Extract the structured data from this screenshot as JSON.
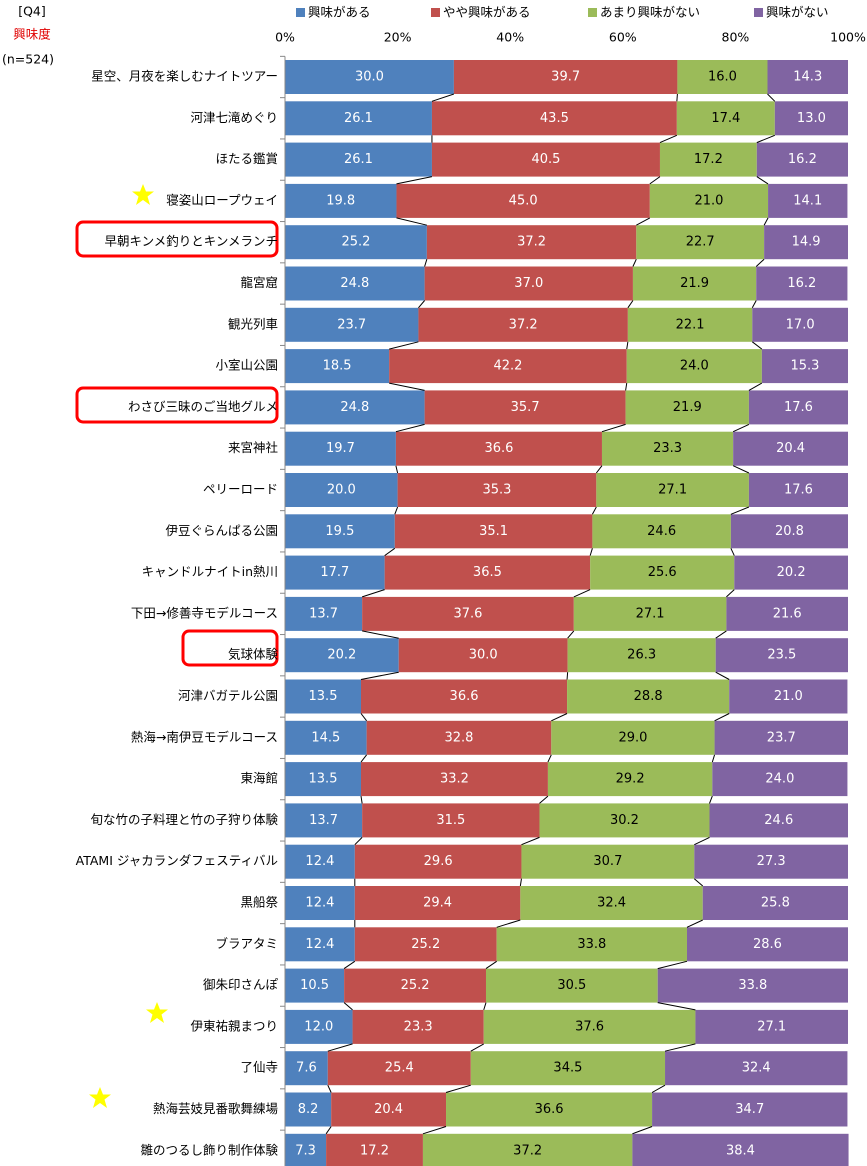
{
  "chart_data": {
    "type": "stacked-bar-horizontal",
    "question": "[Q4]",
    "subtitle": "興味度",
    "sample": "(n=524)",
    "categories": [
      "星空、月夜を楽しむナイトツアー",
      "河津七滝めぐり",
      "ほたる鑑賞",
      "寝姿山ロープウェイ",
      "早朝キンメ釣りとキンメランチ",
      "龍宮窟",
      "観光列車",
      "小室山公園",
      "わさび三昧のご当地グルメ",
      "来宮神社",
      "ペリーロード",
      "伊豆ぐらんぱる公園",
      "キャンドルナイトin熱川",
      "下田→修善寺モデルコース",
      "気球体験",
      "河津バガテル公園",
      "熱海→南伊豆モデルコース",
      "東海館",
      "旬な竹の子料理と竹の子狩り体験",
      "ATAMI ジャカランダフェスティバル",
      "黒船祭",
      "ブラアタミ",
      "御朱印さんぽ",
      "伊東祐親まつり",
      "了仙寺",
      "熱海芸妓見番歌舞練場",
      "雛のつるし飾り制作体験"
    ],
    "series": [
      {
        "name": "興味がある",
        "color": "#4f81bd",
        "label_color": "#ffffff",
        "values": [
          30.0,
          26.1,
          26.1,
          19.8,
          25.2,
          24.8,
          23.7,
          18.5,
          24.8,
          19.7,
          20.0,
          19.5,
          17.7,
          13.7,
          20.2,
          13.5,
          14.5,
          13.5,
          13.7,
          12.4,
          12.4,
          12.4,
          10.5,
          12.0,
          7.6,
          8.2,
          7.3
        ],
        "value_labels": [
          "30.0",
          "26.1",
          "26.1",
          "19.8",
          "25.2",
          "24.8",
          "23.7",
          "18.5",
          "24.8",
          "19.7",
          "20.0",
          "19.5",
          "17.7",
          "13.7",
          "20.2",
          "13.5",
          "14.5",
          "13.5",
          "13.7",
          "12.4",
          "12.4",
          "12.4",
          "10.5",
          "12.0",
          "7.6",
          "8.2",
          "7.3"
        ]
      },
      {
        "name": "やや興味がある",
        "color": "#c0504d",
        "label_color": "#ffffff",
        "values": [
          39.7,
          43.5,
          40.5,
          45.0,
          37.2,
          37.0,
          37.2,
          42.2,
          35.7,
          36.6,
          35.3,
          35.1,
          36.5,
          37.6,
          30.0,
          36.6,
          32.8,
          33.2,
          31.5,
          29.6,
          29.4,
          25.2,
          25.2,
          23.3,
          25.4,
          20.4,
          17.2
        ],
        "value_labels": [
          "39.7",
          "43.5",
          "40.5",
          "45.0",
          "37.2",
          "37.0",
          "37.2",
          "42.2",
          "35.7",
          "36.6",
          "35.3",
          "35.1",
          "36.5",
          "37.6",
          "30.0",
          "36.6",
          "32.8",
          "33.2",
          "31.5",
          "29.6",
          "29.4",
          "25.2",
          "25.2",
          "23.3",
          "25.4",
          "20.4",
          "17.2"
        ]
      },
      {
        "name": "あまり興味がない",
        "color": "#9bbb59",
        "label_color": "#000000",
        "values": [
          16.0,
          17.4,
          17.2,
          21.0,
          22.7,
          21.9,
          22.1,
          24.0,
          21.9,
          23.3,
          27.1,
          24.6,
          25.6,
          27.1,
          26.3,
          28.8,
          29.0,
          29.2,
          30.2,
          30.7,
          32.4,
          33.8,
          30.5,
          37.6,
          34.5,
          36.6,
          37.2
        ],
        "value_labels": [
          "16.0",
          "17.4",
          "17.2",
          "21.0",
          "22.7",
          "21.9",
          "22.1",
          "24.0",
          "21.9",
          "23.3",
          "27.1",
          "24.6",
          "25.6",
          "27.1",
          "26.3",
          "28.8",
          "29.0",
          "29.2",
          "30.2",
          "30.7",
          "32.4",
          "33.8",
          "30.5",
          "37.6",
          "34.5",
          "36.6",
          "37.2"
        ]
      },
      {
        "name": "興味がない",
        "color": "#8064a2",
        "label_color": "#ffffff",
        "values": [
          14.3,
          13.0,
          16.2,
          14.1,
          14.9,
          16.2,
          17.0,
          15.3,
          17.6,
          20.4,
          17.6,
          20.8,
          20.2,
          21.6,
          23.5,
          21.0,
          23.7,
          24.0,
          24.6,
          27.3,
          25.8,
          28.6,
          33.8,
          27.1,
          32.4,
          34.7,
          38.4
        ],
        "value_labels": [
          "14.3",
          "13.0",
          "16.2",
          "14.1",
          "14.9",
          "16.2",
          "17.0",
          "15.3",
          "17.6",
          "20.4",
          "17.6",
          "20.8",
          "20.2",
          "21.6",
          "23.5",
          "21.0",
          "23.7",
          "24.0",
          "24.6",
          "27.3",
          "25.8",
          "28.6",
          "33.8",
          "27.1",
          "32.4",
          "34.7",
          "38.4"
        ]
      }
    ],
    "xlim": [
      0,
      100
    ],
    "xticks": [
      {
        "value": 0,
        "label": "0%"
      },
      {
        "value": 20,
        "label": "20%"
      },
      {
        "value": 40,
        "label": "40%"
      },
      {
        "value": 60,
        "label": "60%"
      },
      {
        "value": 80,
        "label": "80%"
      },
      {
        "value": 100,
        "label": "100%"
      }
    ]
  }
}
